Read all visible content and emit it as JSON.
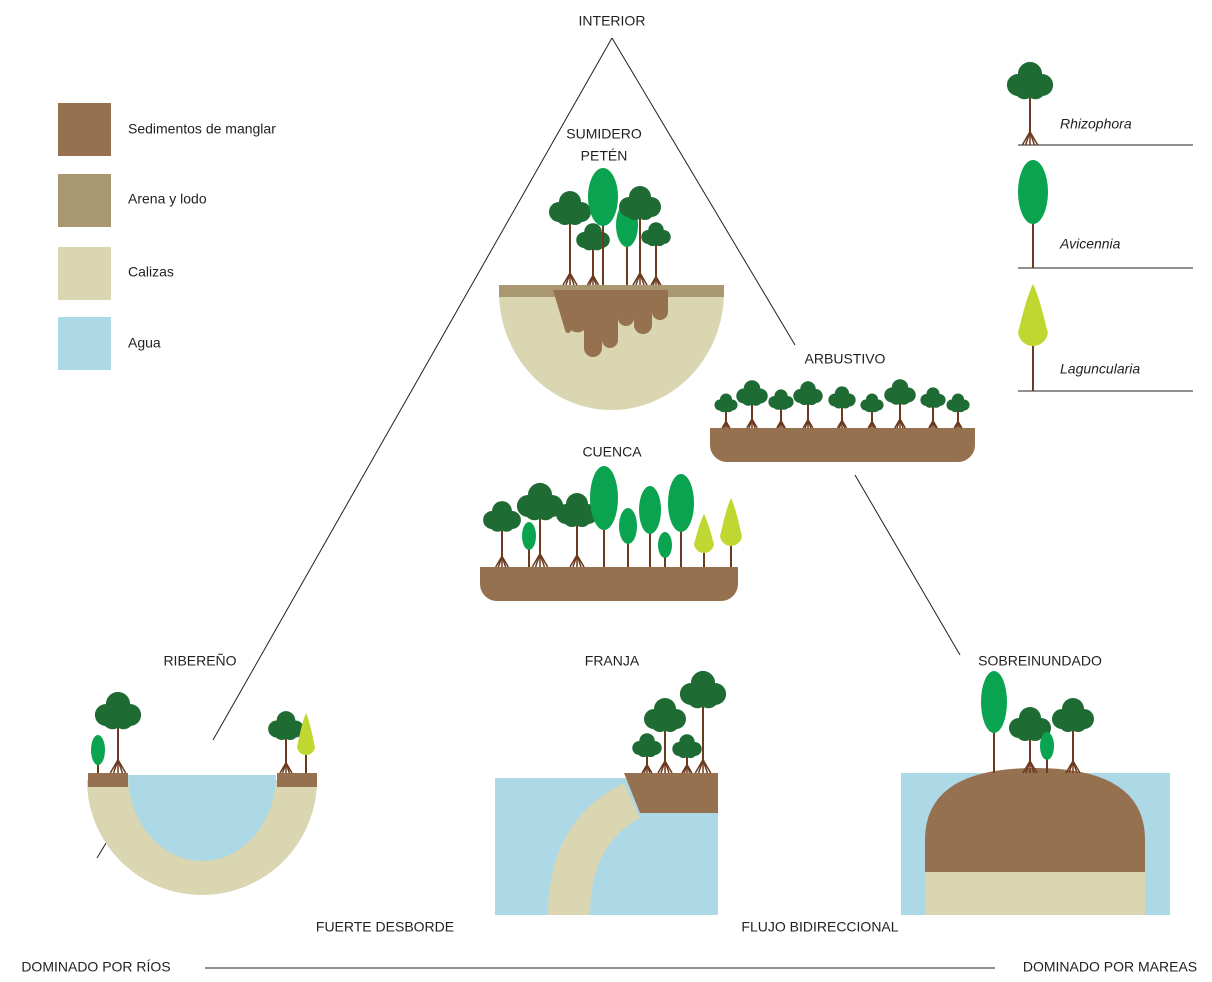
{
  "corners": {
    "top": "INTERIOR",
    "left": "DOMINADO POR RÍOS",
    "right": "DOMINADO POR MAREAS"
  },
  "legend": [
    {
      "label": "Sedimentos de manglar",
      "color": "#95714f"
    },
    {
      "label": "Arena y lodo",
      "color": "#a89770"
    },
    {
      "label": "Calizas",
      "color": "#dad6b2"
    },
    {
      "label": "Agua",
      "color": "#acd9e5"
    }
  ],
  "species": [
    {
      "label": "Rhizophora",
      "color": "#1e6b34"
    },
    {
      "label": "Avicennia",
      "color": "#0aa34f"
    },
    {
      "label": "Laguncularia",
      "color": "#bfd730"
    }
  ],
  "types": {
    "sumidero": [
      "SUMIDERO",
      "PETÉN"
    ],
    "arbustivo": "ARBUSTIVO",
    "cuenca": "CUENCA",
    "ribereno": "RIBEREÑO",
    "franja": "FRANJA",
    "sobreinundado": "SOBREINUNDADO"
  },
  "gradients": [
    "FUERTE DESBORDE",
    "FLUJO BIDIRECCIONAL"
  ]
}
